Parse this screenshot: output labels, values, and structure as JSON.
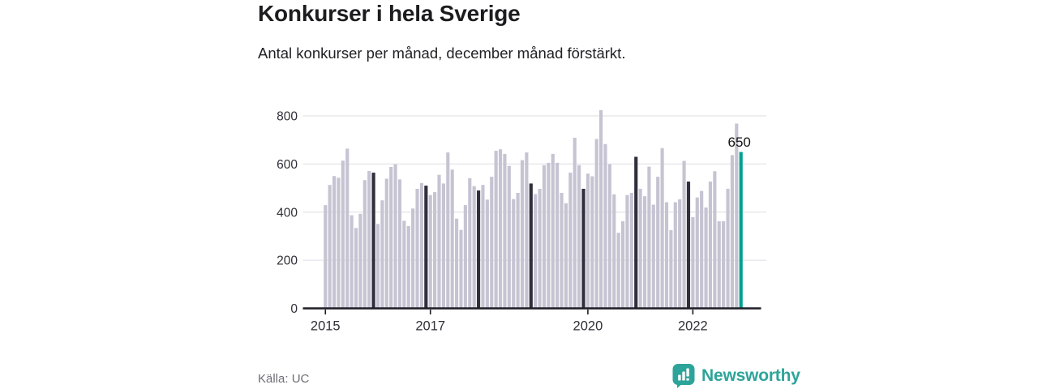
{
  "header": {
    "title": "Konkurser i hela Sverige",
    "subtitle": "Antal konkurser per månad, december månad förstärkt."
  },
  "chart_data": {
    "type": "bar",
    "title": "Konkurser i hela Sverige",
    "subtitle": "Antal konkurser per månad, december månad förstärkt.",
    "series_name": "Antal konkurser per månad",
    "start_month": "2015-01",
    "end_month": "2022-12",
    "values": [
      429,
      513,
      550,
      543,
      614,
      664,
      387,
      334,
      393,
      533,
      571,
      564,
      351,
      449,
      539,
      588,
      599,
      536,
      364,
      342,
      415,
      497,
      521,
      510,
      471,
      483,
      555,
      519,
      648,
      577,
      373,
      326,
      429,
      541,
      508,
      490,
      513,
      452,
      547,
      655,
      661,
      642,
      592,
      454,
      480,
      616,
      648,
      519,
      475,
      497,
      595,
      605,
      642,
      605,
      480,
      437,
      564,
      709,
      595,
      497,
      560,
      549,
      704,
      824,
      683,
      599,
      474,
      314,
      362,
      471,
      480,
      630,
      497,
      466,
      589,
      431,
      547,
      666,
      441,
      325,
      441,
      453,
      613,
      527,
      379,
      461,
      488,
      419,
      527,
      570,
      362,
      362,
      497,
      637,
      768,
      650
    ],
    "december_emphasized": true,
    "highlight": {
      "index": 95,
      "label": "650"
    },
    "x_ticks": [
      {
        "label": "2015",
        "index": 0
      },
      {
        "label": "2017",
        "index": 24
      },
      {
        "label": "2020",
        "index": 60
      },
      {
        "label": "2022",
        "index": 84
      }
    ],
    "y_ticks": [
      0,
      200,
      400,
      600,
      800
    ],
    "ylim": [
      0,
      800
    ],
    "grid": "horizontal",
    "legend": "none",
    "colors": {
      "bar": "#c6c4d2",
      "december_bar": "#312f3d",
      "highlight_bar": "#00a18c",
      "axis": "#1d1d25",
      "gridline": "#e4e3e8",
      "tick_label": "#303038",
      "annotation": "#141416"
    }
  },
  "footer": {
    "source": "Källa: UC",
    "logo_text": "Newsworthy",
    "logo_color": "#2da49a"
  }
}
